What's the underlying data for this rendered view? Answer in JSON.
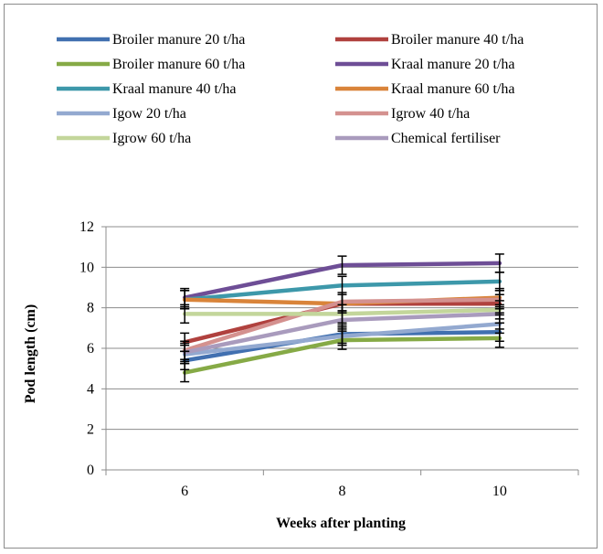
{
  "chart_data": {
    "type": "line",
    "title": "",
    "xlabel": "Weeks after planting",
    "ylabel": "Pod length (cm)",
    "x": [
      6,
      8,
      10
    ],
    "ylim": [
      0,
      12
    ],
    "yticks": [
      0,
      2,
      4,
      6,
      8,
      10,
      12
    ],
    "grid": true,
    "legend_position": "top",
    "series": [
      {
        "name": "Broiler manure 20 t/ha",
        "color": "#4170b0",
        "values": [
          5.4,
          6.7,
          6.8
        ]
      },
      {
        "name": "Broiler manure 40 t/ha",
        "color": "#b0413e",
        "values": [
          6.3,
          8.2,
          8.2
        ]
      },
      {
        "name": "Broiler manure 60 t/ha",
        "color": "#86aa46",
        "values": [
          4.8,
          6.4,
          6.5
        ]
      },
      {
        "name": "Kraal manure 20 t/ha",
        "color": "#6e4e96",
        "values": [
          8.5,
          10.1,
          10.2
        ]
      },
      {
        "name": "Kraal manure 40 t/ha",
        "color": "#3d98aa",
        "values": [
          8.4,
          9.1,
          9.3
        ]
      },
      {
        "name": "Kraal manure 60 t/ha",
        "color": "#d9843a",
        "values": [
          8.4,
          8.2,
          8.5
        ]
      },
      {
        "name": "Igow 20 t/ha",
        "color": "#93a9d0",
        "values": [
          5.7,
          6.6,
          7.2
        ]
      },
      {
        "name": "Igrow 40 t/ha",
        "color": "#d4918f",
        "values": [
          5.9,
          8.3,
          8.4
        ]
      },
      {
        "name": "Igrow 60 t/ha",
        "color": "#c3d69b",
        "values": [
          7.7,
          7.7,
          7.9
        ]
      },
      {
        "name": "Chemical fertiliser",
        "color": "#a99bbd",
        "values": [
          5.8,
          7.4,
          7.7
        ]
      }
    ],
    "error_bar_color": "#000000"
  }
}
